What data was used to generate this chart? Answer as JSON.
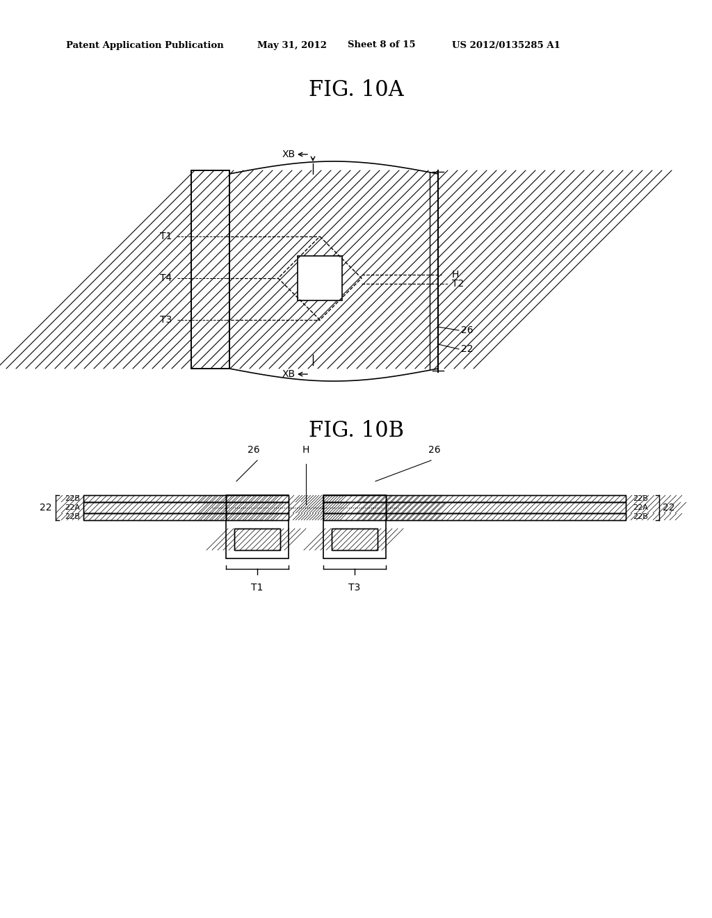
{
  "bg_color": "#ffffff",
  "line_color": "#000000",
  "header_text": "Patent Application Publication",
  "header_date": "May 31, 2012",
  "header_sheet": "Sheet 8 of 15",
  "header_patent": "US 2012/0135285 A1",
  "fig10a_title": "FIG. 10A",
  "fig10b_title": "FIG. 10B",
  "fig10a_labels": [
    "XB",
    "XB",
    "T1",
    "T4",
    "T3",
    "T2",
    "H",
    "26",
    "22"
  ],
  "fig10b_labels": [
    "26",
    "H",
    "26",
    "22B",
    "22A",
    "22B",
    "22",
    "22B",
    "22A",
    "22B",
    "22",
    "T1",
    "T3"
  ]
}
